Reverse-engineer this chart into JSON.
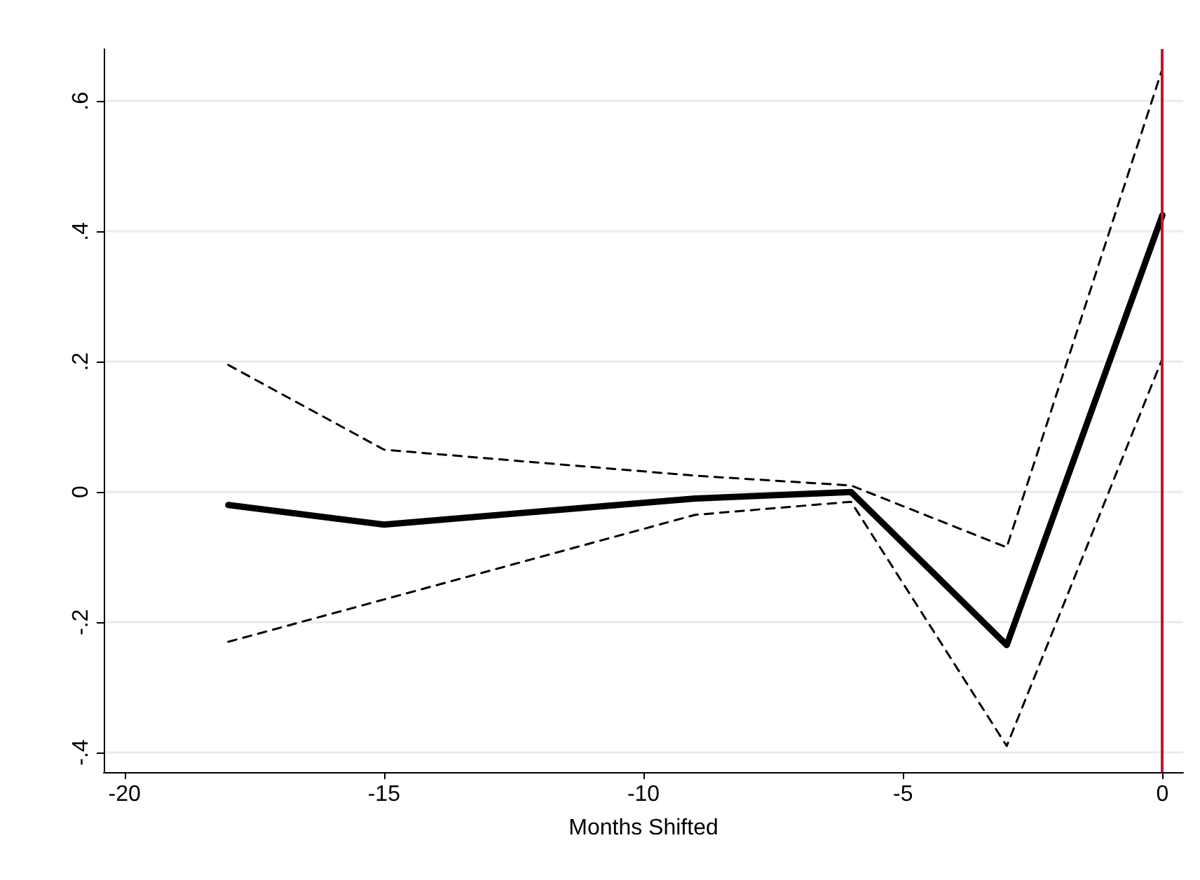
{
  "chart_data": {
    "type": "line",
    "xlabel": "Months Shifted",
    "x": [
      -18,
      -15,
      -12,
      -9,
      -6,
      -3,
      0
    ],
    "series": [
      {
        "color": "#000000",
        "line_style": "solid",
        "values": [
          -0.02,
          -0.05,
          -0.03,
          -0.01,
          0.0,
          -0.235,
          0.425
        ]
      },
      {
        "color": "#000000",
        "line_style": "dashed",
        "values": [
          0.195,
          0.065,
          0.045,
          0.025,
          0.01,
          -0.085,
          0.65
        ]
      },
      {
        "color": "#000000",
        "line_style": "dashed",
        "values": [
          -0.23,
          -0.165,
          -0.1,
          -0.035,
          -0.015,
          -0.39,
          0.205
        ]
      }
    ],
    "xlim": [
      -20.4,
      0.4
    ],
    "xticks": [
      -20,
      -15,
      -10,
      -5,
      0
    ],
    "ylim": [
      -0.43,
      0.68
    ],
    "yticks": [
      {
        "value": -0.4,
        "label": "-.4"
      },
      {
        "value": -0.2,
        "label": "-.2"
      },
      0,
      {
        "value": 0.2,
        "label": ".2"
      },
      {
        "value": 0.4,
        "label": ".4"
      },
      {
        "value": 0.6,
        "label": ".6"
      }
    ],
    "ref_lines": [
      {
        "axis": "x",
        "value": 0,
        "color": "#c8102e"
      }
    ],
    "grid": "y",
    "marker": "none"
  }
}
